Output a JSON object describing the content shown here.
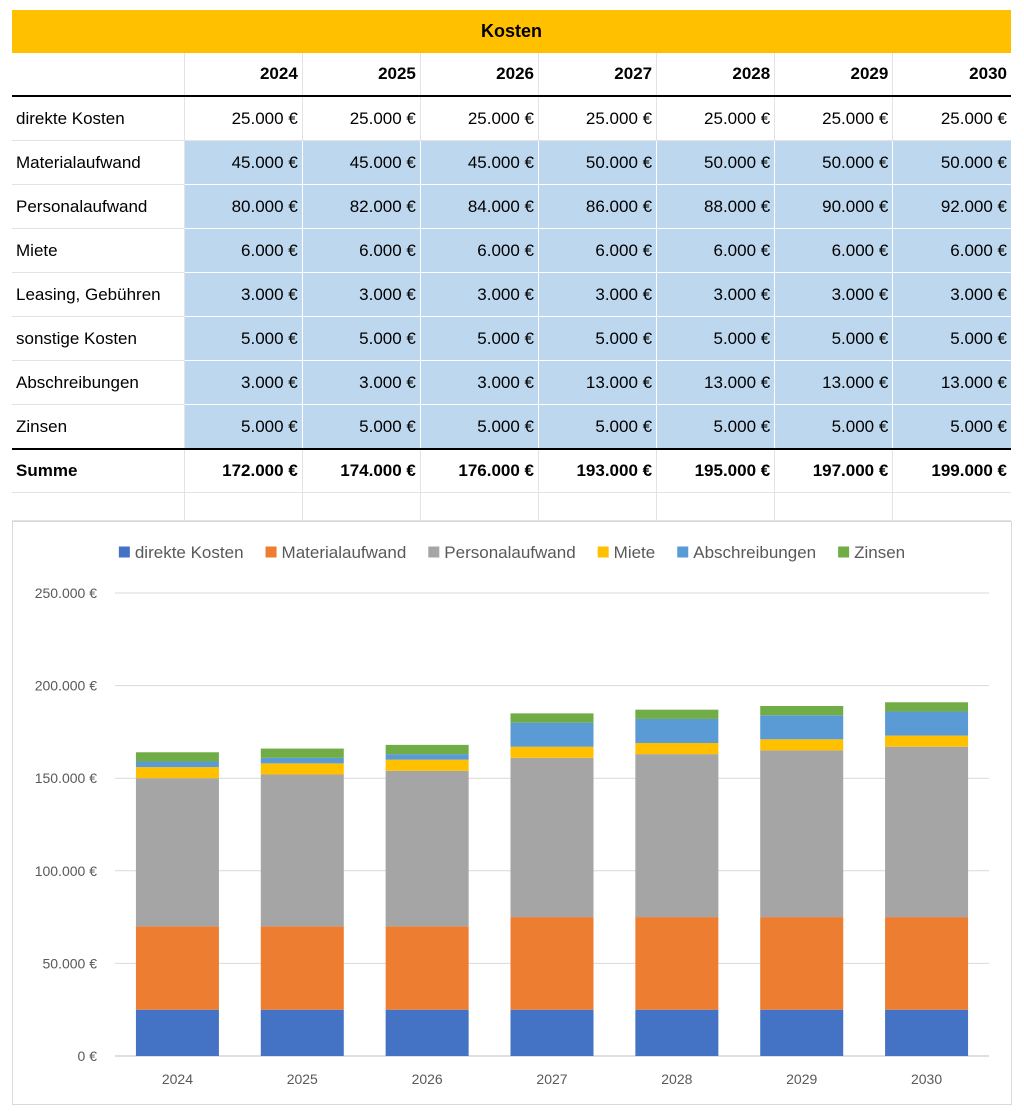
{
  "table": {
    "title": "Kosten",
    "years": [
      "2024",
      "2025",
      "2026",
      "2027",
      "2028",
      "2029",
      "2030"
    ],
    "rows": [
      {
        "label": "direkte Kosten",
        "values": [
          "25.000 €",
          "25.000 €",
          "25.000 €",
          "25.000 €",
          "25.000 €",
          "25.000 €",
          "25.000 €"
        ]
      },
      {
        "label": "Materialaufwand",
        "values": [
          "45.000 €",
          "45.000 €",
          "45.000 €",
          "50.000 €",
          "50.000 €",
          "50.000 €",
          "50.000 €"
        ]
      },
      {
        "label": "Personalaufwand",
        "values": [
          "80.000 €",
          "82.000 €",
          "84.000 €",
          "86.000 €",
          "88.000 €",
          "90.000 €",
          "92.000 €"
        ]
      },
      {
        "label": "Miete",
        "values": [
          "6.000 €",
          "6.000 €",
          "6.000 €",
          "6.000 €",
          "6.000 €",
          "6.000 €",
          "6.000 €"
        ]
      },
      {
        "label": "Leasing, Gebühren",
        "values": [
          "3.000 €",
          "3.000 €",
          "3.000 €",
          "3.000 €",
          "3.000 €",
          "3.000 €",
          "3.000 €"
        ]
      },
      {
        "label": "sonstige Kosten",
        "values": [
          "5.000 €",
          "5.000 €",
          "5.000 €",
          "5.000 €",
          "5.000 €",
          "5.000 €",
          "5.000 €"
        ]
      },
      {
        "label": "Abschreibungen",
        "values": [
          "3.000 €",
          "3.000 €",
          "3.000 €",
          "13.000 €",
          "13.000 €",
          "13.000 €",
          "13.000 €"
        ]
      },
      {
        "label": "Zinsen",
        "values": [
          "5.000 €",
          "5.000 €",
          "5.000 €",
          "5.000 €",
          "5.000 €",
          "5.000 €",
          "5.000 €"
        ]
      }
    ],
    "sum": {
      "label": "Summe",
      "values": [
        "172.000 €",
        "174.000 €",
        "176.000 €",
        "193.000 €",
        "195.000 €",
        "197.000 €",
        "199.000 €"
      ]
    }
  },
  "colors": {
    "header_bar": "#ffc000",
    "blue_fill": "#bdd7ee"
  },
  "chart_data": {
    "type": "bar",
    "stacked": true,
    "categories": [
      "2024",
      "2025",
      "2026",
      "2027",
      "2028",
      "2029",
      "2030"
    ],
    "series": [
      {
        "name": "direkte Kosten",
        "color": "#4472c4",
        "values": [
          25000,
          25000,
          25000,
          25000,
          25000,
          25000,
          25000
        ]
      },
      {
        "name": "Materialaufwand",
        "color": "#ed7d31",
        "values": [
          45000,
          45000,
          45000,
          50000,
          50000,
          50000,
          50000
        ]
      },
      {
        "name": "Personalaufwand",
        "color": "#a5a5a5",
        "values": [
          80000,
          82000,
          84000,
          86000,
          88000,
          90000,
          92000
        ]
      },
      {
        "name": "Miete",
        "color": "#ffc000",
        "values": [
          6000,
          6000,
          6000,
          6000,
          6000,
          6000,
          6000
        ]
      },
      {
        "name": "Abschreibungen",
        "color": "#5b9bd5",
        "values": [
          3000,
          3000,
          3000,
          13000,
          13000,
          13000,
          13000
        ]
      },
      {
        "name": "Zinsen",
        "color": "#70ad47",
        "values": [
          5000,
          5000,
          5000,
          5000,
          5000,
          5000,
          5000
        ]
      }
    ],
    "y_ticks": [
      "0 €",
      "50.000 €",
      "100.000 €",
      "150.000 €",
      "200.000 €",
      "250.000 €"
    ],
    "ylim": [
      0,
      250000
    ],
    "legend_position": "top",
    "grid": true
  }
}
